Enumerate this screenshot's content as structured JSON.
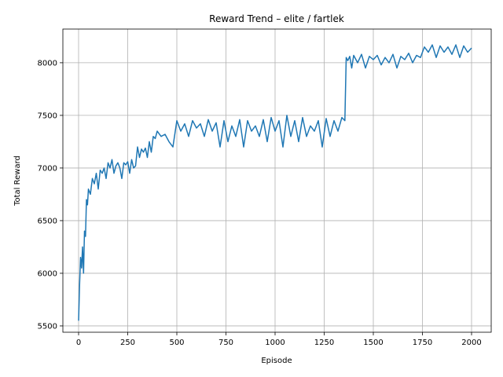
{
  "chart_data": {
    "type": "line",
    "title": "Reward Trend – elite / fartlek",
    "xlabel": "Episode",
    "ylabel": "Total Reward",
    "xlim": [
      -80,
      2100
    ],
    "ylim": [
      5440,
      8320
    ],
    "xticks": [
      0,
      250,
      500,
      750,
      1000,
      1250,
      1500,
      1750,
      2000
    ],
    "yticks": [
      5500,
      6000,
      6500,
      7000,
      7500,
      8000
    ],
    "grid": true,
    "legend": "none",
    "series": [
      {
        "color": "#1f77b4",
        "x": [
          0,
          5,
          10,
          15,
          20,
          25,
          30,
          35,
          40,
          45,
          50,
          60,
          70,
          80,
          90,
          100,
          110,
          120,
          130,
          140,
          150,
          160,
          170,
          180,
          190,
          200,
          210,
          220,
          230,
          240,
          250,
          260,
          270,
          280,
          290,
          300,
          310,
          320,
          330,
          340,
          350,
          360,
          370,
          380,
          390,
          400,
          420,
          440,
          460,
          480,
          500,
          520,
          540,
          560,
          580,
          600,
          620,
          640,
          660,
          680,
          700,
          720,
          740,
          760,
          780,
          800,
          820,
          840,
          860,
          880,
          900,
          920,
          940,
          960,
          980,
          1000,
          1020,
          1040,
          1060,
          1080,
          1100,
          1120,
          1140,
          1160,
          1180,
          1200,
          1220,
          1240,
          1260,
          1280,
          1300,
          1320,
          1340,
          1355,
          1362,
          1370,
          1380,
          1390,
          1400,
          1420,
          1440,
          1460,
          1480,
          1500,
          1520,
          1540,
          1560,
          1580,
          1600,
          1620,
          1640,
          1660,
          1680,
          1700,
          1720,
          1740,
          1760,
          1780,
          1800,
          1820,
          1840,
          1860,
          1880,
          1900,
          1920,
          1940,
          1960,
          1980,
          2000
        ],
        "y": [
          5550,
          5900,
          6150,
          6050,
          6250,
          6000,
          6400,
          6350,
          6700,
          6650,
          6800,
          6750,
          6900,
          6850,
          6950,
          6800,
          6980,
          6950,
          7000,
          6900,
          7050,
          7000,
          7080,
          6950,
          7020,
          7050,
          7000,
          6900,
          7050,
          7030,
          7060,
          6950,
          7080,
          7000,
          7020,
          7200,
          7100,
          7180,
          7150,
          7190,
          7100,
          7250,
          7150,
          7300,
          7280,
          7350,
          7300,
          7320,
          7250,
          7200,
          7450,
          7350,
          7420,
          7300,
          7450,
          7380,
          7420,
          7300,
          7460,
          7350,
          7430,
          7200,
          7450,
          7250,
          7400,
          7300,
          7460,
          7200,
          7450,
          7350,
          7400,
          7300,
          7460,
          7250,
          7480,
          7350,
          7450,
          7200,
          7500,
          7300,
          7450,
          7250,
          7480,
          7300,
          7400,
          7350,
          7450,
          7200,
          7470,
          7300,
          7450,
          7350,
          7480,
          7450,
          8050,
          8020,
          8060,
          7950,
          8070,
          8000,
          8080,
          7950,
          8060,
          8030,
          8070,
          7980,
          8050,
          8000,
          8080,
          7950,
          8060,
          8030,
          8090,
          8000,
          8070,
          8050,
          8150,
          8100,
          8170,
          8050,
          8160,
          8100,
          8150,
          8080,
          8170,
          8050,
          8160,
          8100,
          8140
        ]
      }
    ]
  }
}
